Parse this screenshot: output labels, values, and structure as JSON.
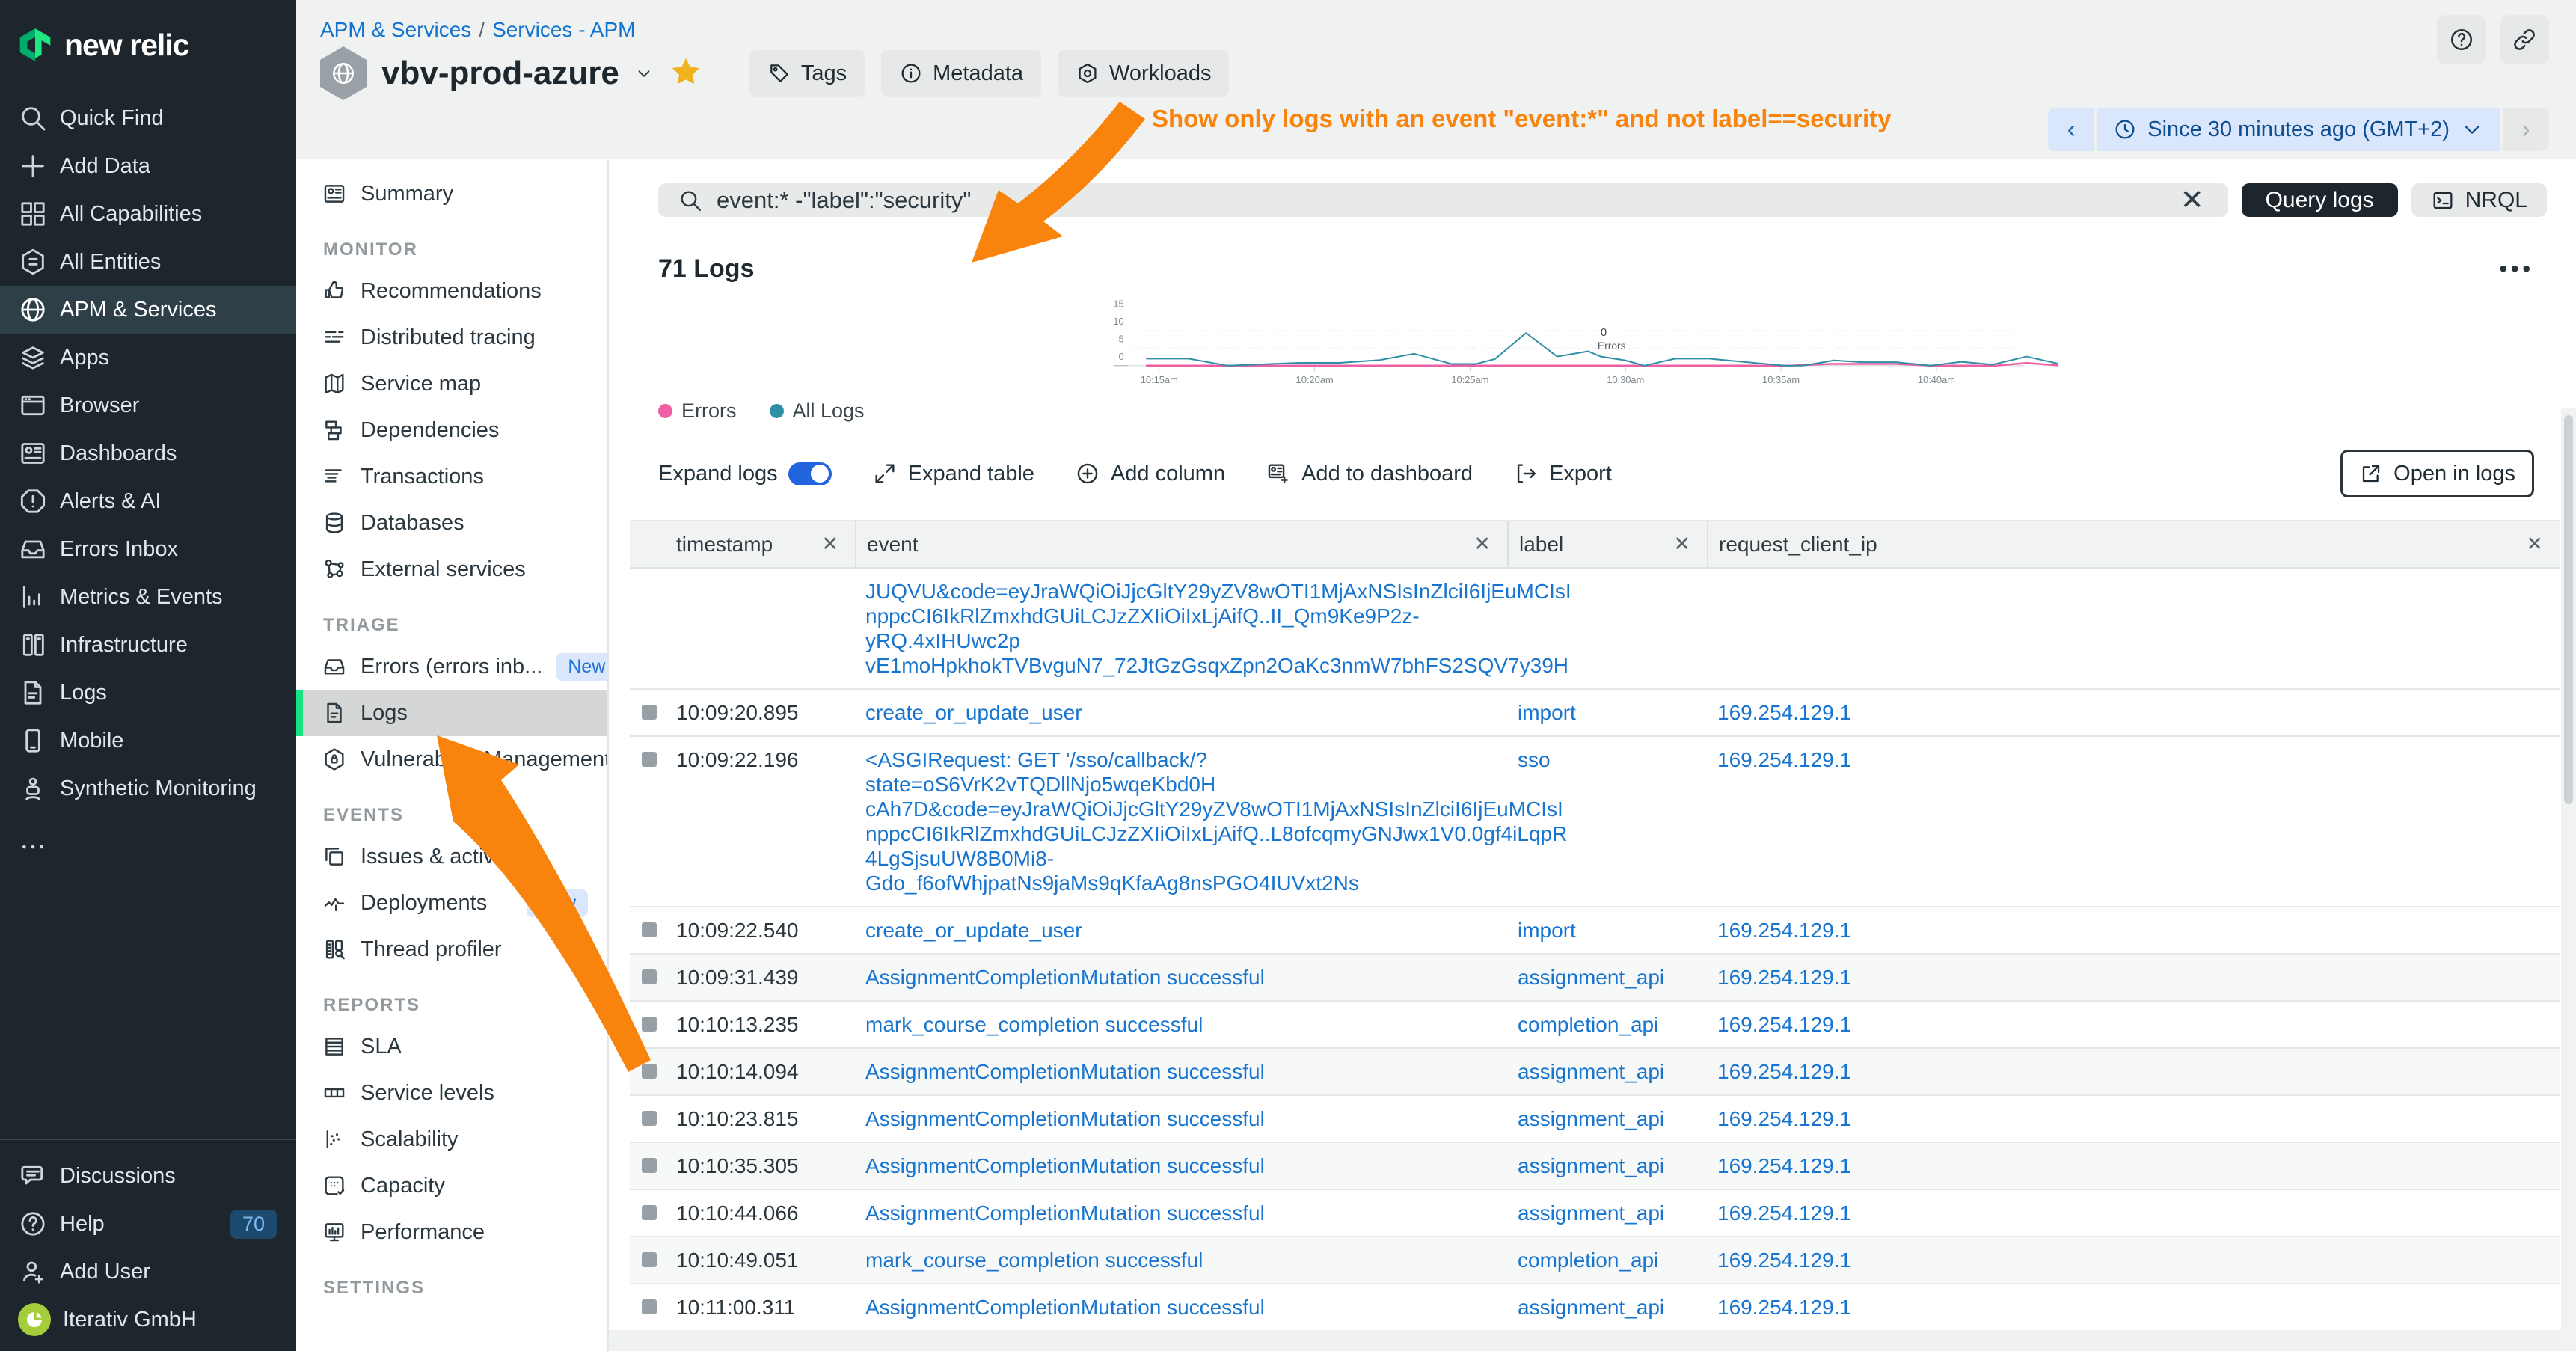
{
  "brand": {
    "logo_text": "new relic"
  },
  "main_sidebar": {
    "items": [
      {
        "label": "Quick Find",
        "icon": "search"
      },
      {
        "label": "Add Data",
        "icon": "plus"
      },
      {
        "label": "All Capabilities",
        "icon": "grid"
      },
      {
        "label": "All Entities",
        "icon": "hex-list"
      },
      {
        "label": "APM & Services",
        "icon": "globe",
        "active": true
      },
      {
        "label": "Apps",
        "icon": "layers"
      },
      {
        "label": "Browser",
        "icon": "window"
      },
      {
        "label": "Dashboards",
        "icon": "dashboard"
      },
      {
        "label": "Alerts & AI",
        "icon": "alert-octagon"
      },
      {
        "label": "Errors Inbox",
        "icon": "inbox"
      },
      {
        "label": "Metrics & Events",
        "icon": "bar-chart"
      },
      {
        "label": "Infrastructure",
        "icon": "server"
      },
      {
        "label": "Logs",
        "icon": "document"
      },
      {
        "label": "Mobile",
        "icon": "mobile"
      },
      {
        "label": "Synthetic Monitoring",
        "icon": "robot"
      },
      {
        "label": "",
        "icon": "ellipsis",
        "more": true
      }
    ],
    "footer_items": [
      {
        "label": "Discussions",
        "icon": "chat"
      },
      {
        "label": "Help",
        "icon": "help-circle",
        "badge": "70"
      },
      {
        "label": "Add User",
        "icon": "user-plus"
      },
      {
        "label": "Iterativ GmbH",
        "icon": "pie",
        "avatar": true
      }
    ]
  },
  "breadcrumb": {
    "items": [
      "APM & Services",
      "Services - APM"
    ],
    "separator": "/"
  },
  "entity_header": {
    "title": "vbv-prod-azure",
    "favorite": true,
    "buttons": [
      {
        "label": "Tags",
        "icon": "tag"
      },
      {
        "label": "Metadata",
        "icon": "info"
      },
      {
        "label": "Workloads",
        "icon": "hexagon"
      }
    ]
  },
  "annotation": {
    "text": "Show only logs with an event \"event:*\" and not label==security",
    "color": "#f8830d"
  },
  "time_picker": {
    "label": "Since 30 minutes ago (GMT+2)"
  },
  "sub_sidebar": {
    "groups": [
      {
        "header": "",
        "items": [
          {
            "label": "Summary",
            "icon": "dashboard"
          }
        ]
      },
      {
        "header": "MONITOR",
        "items": [
          {
            "label": "Recommendations",
            "icon": "thumbs-up"
          },
          {
            "label": "Distributed tracing",
            "icon": "trace-lines"
          },
          {
            "label": "Service map",
            "icon": "map"
          },
          {
            "label": "Dependencies",
            "icon": "dependencies"
          },
          {
            "label": "Transactions",
            "icon": "transactions"
          },
          {
            "label": "Databases",
            "icon": "database"
          },
          {
            "label": "External services",
            "icon": "network"
          }
        ]
      },
      {
        "header": "TRIAGE",
        "items": [
          {
            "label": "Errors (errors inb...",
            "icon": "inbox",
            "badge": "New"
          },
          {
            "label": "Logs",
            "icon": "document",
            "active": true
          },
          {
            "label": "Vulnerability Management",
            "icon": "shield-hex"
          }
        ]
      },
      {
        "header": "EVENTS",
        "items": [
          {
            "label": "Issues & activity",
            "icon": "copy"
          },
          {
            "label": "Deployments",
            "icon": "deploy",
            "badge": "New"
          },
          {
            "label": "Thread profiler",
            "icon": "profiler"
          }
        ]
      },
      {
        "header": "REPORTS",
        "items": [
          {
            "label": "SLA",
            "icon": "sla"
          },
          {
            "label": "Service levels",
            "icon": "service-levels"
          },
          {
            "label": "Scalability",
            "icon": "scatter"
          },
          {
            "label": "Capacity",
            "icon": "capacity"
          },
          {
            "label": "Performance",
            "icon": "performance"
          }
        ]
      },
      {
        "header": "SETTINGS",
        "items": []
      }
    ]
  },
  "logs": {
    "search": {
      "value": "event:* -\"label\":\"security\""
    },
    "query_button": "Query logs",
    "nrql_button": "NRQL",
    "count_title": "71 Logs",
    "toolbar": {
      "expand_logs": "Expand logs",
      "expand_logs_on": true,
      "expand_table": "Expand table",
      "add_column": "Add column",
      "add_to_dashboard": "Add to dashboard",
      "export": "Export",
      "open_in_logs": "Open in logs"
    },
    "table": {
      "columns": [
        "timestamp",
        "event",
        "label",
        "request_client_ip"
      ],
      "rows": [
        {
          "lines": [
            "JUQVU&code=eyJraWQiOiJjcGltY29yZV8wOTI1MjAxNSIsInZlciI6IjEuMCIsI",
            "nppcCI6IkRlZmxhdGUiLCJzZXIiOiIxLjAifQ..II_Qm9Ke9P2z-yRQ.4xIHUwc2p",
            "vE1moHpkhokTVBvguN7_72JtGzGsqxZpn2OaKc3nmW7bhFS2SQV7y39H"
          ],
          "partial": true
        },
        {
          "time": "10:09:20.895",
          "event": "create_or_update_user",
          "label": "import",
          "ip": "169.254.129.1"
        },
        {
          "time": "10:09:22.196",
          "lines": [
            "<ASGIRequest: GET '/sso/callback/?state=oS6VrK2vTQDllNjo5wqeKbd0H",
            "cAh7D&code=eyJraWQiOiJjcGltY29yZV8wOTI1MjAxNSIsInZlciI6IjEuMCIsI",
            "nppcCI6IkRlZmxhdGUiLCJzZXIiOiIxLjAifQ..L8ofcqmyGNJwx1V0.0gf4iLqpR",
            "4LgSjsuUW8B0Mi8-Gdo_f6ofWhjpatNs9jaMs9qKfaAg8nsPGO4IUVxt2Ns"
          ],
          "label": "sso",
          "ip": "169.254.129.1"
        },
        {
          "time": "10:09:22.540",
          "event": "create_or_update_user",
          "label": "import",
          "ip": "169.254.129.1"
        },
        {
          "time": "10:09:31.439",
          "event": "AssignmentCompletionMutation successful",
          "label": "assignment_api",
          "ip": "169.254.129.1",
          "shade": true
        },
        {
          "time": "10:10:13.235",
          "event": "mark_course_completion successful",
          "label": "completion_api",
          "ip": "169.254.129.1"
        },
        {
          "time": "10:10:14.094",
          "event": "AssignmentCompletionMutation successful",
          "label": "assignment_api",
          "ip": "169.254.129.1",
          "shade": true
        },
        {
          "time": "10:10:23.815",
          "event": "AssignmentCompletionMutation successful",
          "label": "assignment_api",
          "ip": "169.254.129.1"
        },
        {
          "time": "10:10:35.305",
          "event": "AssignmentCompletionMutation successful",
          "label": "assignment_api",
          "ip": "169.254.129.1",
          "shade": true
        },
        {
          "time": "10:10:44.066",
          "event": "AssignmentCompletionMutation successful",
          "label": "assignment_api",
          "ip": "169.254.129.1"
        },
        {
          "time": "10:10:49.051",
          "event": "mark_course_completion successful",
          "label": "completion_api",
          "ip": "169.254.129.1",
          "shade": true
        },
        {
          "time": "10:11:00.311",
          "event": "AssignmentCompletionMutation successful",
          "label": "assignment_api",
          "ip": "169.254.129.1"
        }
      ]
    }
  },
  "chart_data": {
    "type": "line",
    "title": "71 Logs",
    "xlabel": "",
    "ylabel": "",
    "x_start_time": "10:14am",
    "x_range_minutes": [
      0,
      30
    ],
    "x_ticks": [
      {
        "m": 1,
        "label": "10:15am"
      },
      {
        "m": 6,
        "label": "10:20am"
      },
      {
        "m": 11,
        "label": "10:25am"
      },
      {
        "m": 16,
        "label": "10:30am"
      },
      {
        "m": 21,
        "label": "10:35am"
      },
      {
        "m": 26,
        "label": "10:40am"
      }
    ],
    "y_ticks": [
      0,
      5,
      10,
      15
    ],
    "ylim": [
      0,
      17
    ],
    "grid": "dotted-horizontal",
    "legend_position": "bottom-left",
    "annotation": {
      "value": "0",
      "series": "Errors",
      "at_minute": 15.1
    },
    "series": [
      {
        "name": "Errors",
        "color": "#ee5fa4",
        "points": [
          [
            0.6,
            0
          ],
          [
            21.3,
            0
          ],
          [
            22.6,
            0.5
          ],
          [
            24.7,
            0.5
          ],
          [
            25.8,
            0
          ],
          [
            27.9,
            0
          ],
          [
            28.9,
            0.75
          ],
          [
            29.9,
            0.1
          ]
        ]
      },
      {
        "name": "All Logs",
        "color": "#2e8fa6",
        "points": [
          [
            0.6,
            2
          ],
          [
            1.95,
            2
          ],
          [
            3.2,
            0
          ],
          [
            5.5,
            0.8
          ],
          [
            6.8,
            0.8
          ],
          [
            8.1,
            1.6
          ],
          [
            9.2,
            3.4
          ],
          [
            10.4,
            0.5
          ],
          [
            11.2,
            0.5
          ],
          [
            11.8,
            1.9
          ],
          [
            12.8,
            9.3
          ],
          [
            13.8,
            2.6
          ],
          [
            14.8,
            4.1
          ],
          [
            15.2,
            2.6
          ],
          [
            16,
            1.5
          ],
          [
            16.6,
            0
          ],
          [
            17.6,
            2
          ],
          [
            18.7,
            2
          ],
          [
            21.1,
            0
          ],
          [
            21.7,
            0
          ],
          [
            22.7,
            1.5
          ],
          [
            23.6,
            1
          ],
          [
            24.7,
            1
          ],
          [
            25.8,
            0
          ],
          [
            26.8,
            1.1
          ],
          [
            27.8,
            0.3
          ],
          [
            28.9,
            2.6
          ],
          [
            29.9,
            0.6
          ]
        ]
      }
    ]
  }
}
